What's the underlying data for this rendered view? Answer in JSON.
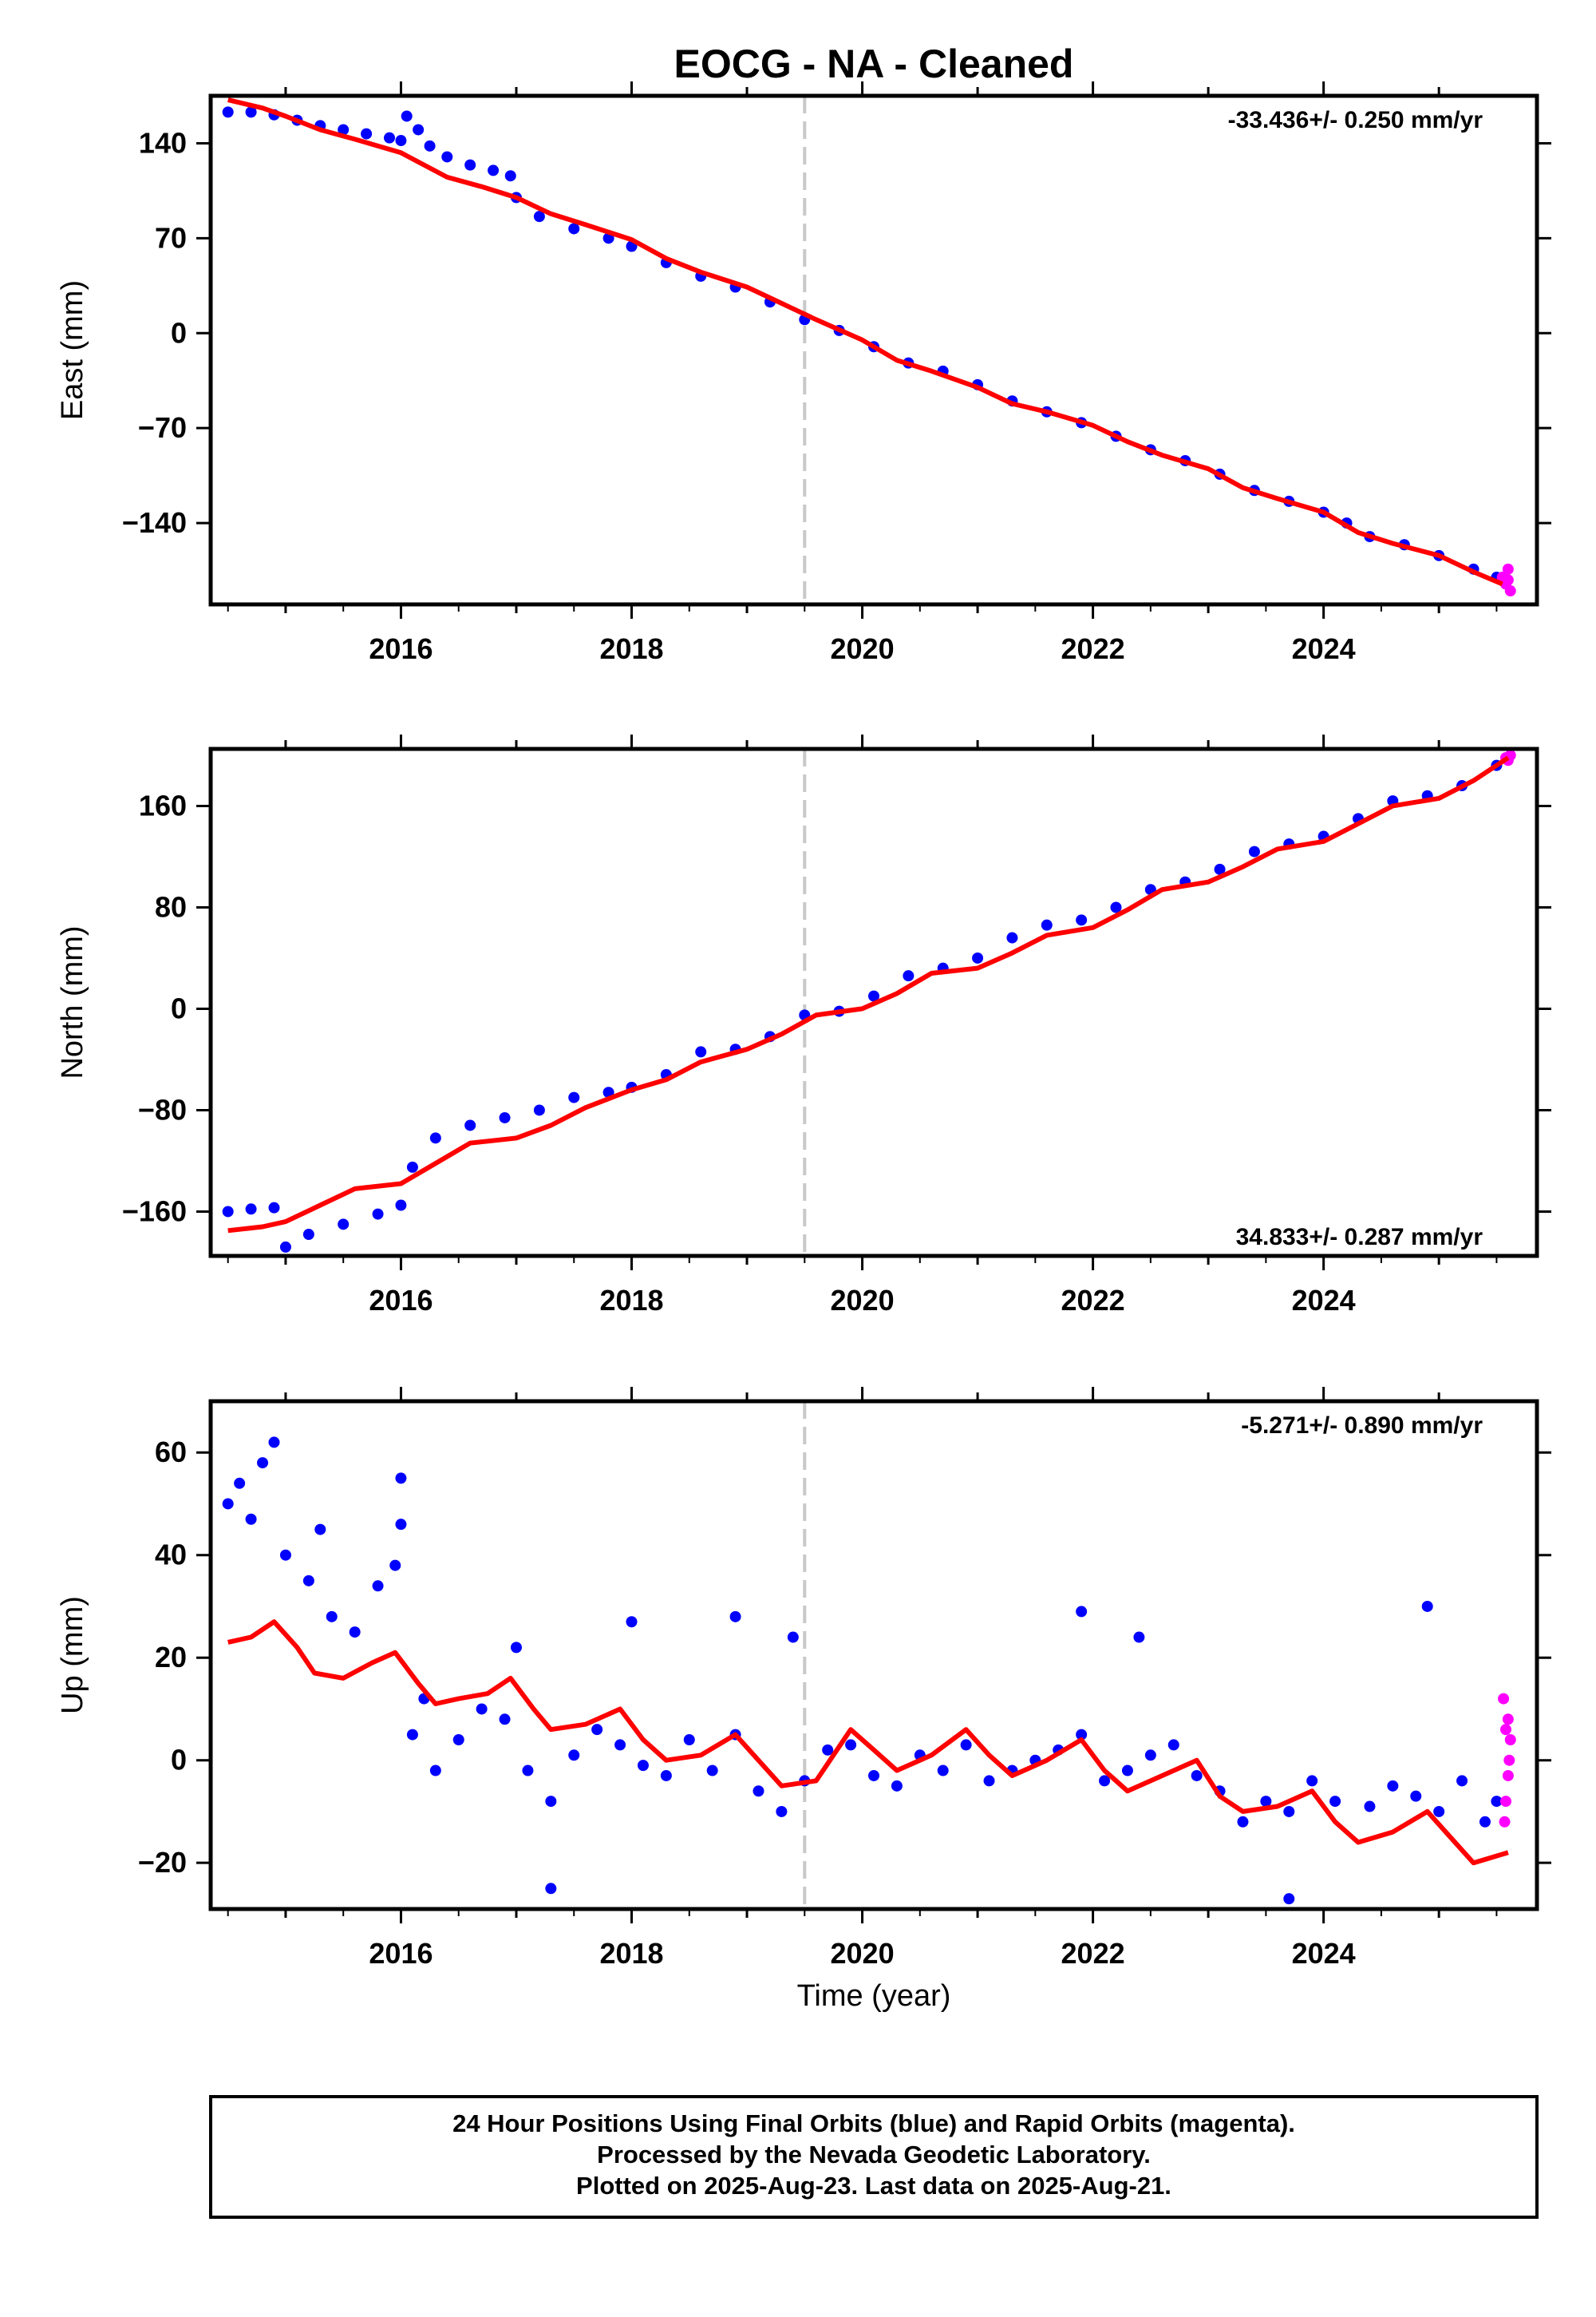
{
  "title": "EOCG  - NA - Cleaned",
  "xlabel": "Time (year)",
  "footer": [
    "24 Hour Positions Using Final Orbits (blue) and Rapid Orbits (magenta).",
    "Processed by the Nevada Geodetic Laboratory.",
    "Plotted on 2025-Aug-23. Last data on 2025-Aug-21."
  ],
  "colors": {
    "final": "#0000ff",
    "rapid": "#ff00ff",
    "model": "#ff0000",
    "marker": "#c8c8c8"
  },
  "chart_data": [
    {
      "type": "scatter",
      "ylabel": "East (mm)",
      "rate": "-33.436+/- 0.250 mm/yr",
      "xlim": [
        2014.35,
        2025.85
      ],
      "ylim": [
        -200,
        175
      ],
      "yticks": [
        140,
        70,
        0,
        -70,
        -140
      ],
      "ytick_labels": [
        "140",
        "70",
        "0",
        "−70",
        "−140"
      ],
      "xticks": [
        2016,
        2018,
        2020,
        2022,
        2024
      ],
      "marker_x": 2019.5,
      "final_points": [
        [
          2014.5,
          163
        ],
        [
          2014.7,
          163
        ],
        [
          2014.9,
          161
        ],
        [
          2015.1,
          157
        ],
        [
          2015.3,
          153
        ],
        [
          2015.5,
          150
        ],
        [
          2015.7,
          147
        ],
        [
          2015.9,
          144
        ],
        [
          2016.0,
          142
        ],
        [
          2016.05,
          160
        ],
        [
          2016.15,
          150
        ],
        [
          2016.25,
          138
        ],
        [
          2016.4,
          130
        ],
        [
          2016.6,
          124
        ],
        [
          2016.8,
          120
        ],
        [
          2016.95,
          116
        ],
        [
          2017.0,
          100
        ],
        [
          2017.2,
          86
        ],
        [
          2017.5,
          77
        ],
        [
          2017.8,
          70
        ],
        [
          2018.0,
          64
        ],
        [
          2018.3,
          52
        ],
        [
          2018.6,
          42
        ],
        [
          2018.9,
          34
        ],
        [
          2019.2,
          23
        ],
        [
          2019.5,
          10
        ],
        [
          2019.8,
          2
        ],
        [
          2020.1,
          -10
        ],
        [
          2020.4,
          -22
        ],
        [
          2020.7,
          -28
        ],
        [
          2021.0,
          -38
        ],
        [
          2021.3,
          -50
        ],
        [
          2021.6,
          -58
        ],
        [
          2021.9,
          -66
        ],
        [
          2022.2,
          -76
        ],
        [
          2022.5,
          -86
        ],
        [
          2022.8,
          -94
        ],
        [
          2023.1,
          -104
        ],
        [
          2023.4,
          -116
        ],
        [
          2023.7,
          -124
        ],
        [
          2024.0,
          -132
        ],
        [
          2024.2,
          -140
        ],
        [
          2024.4,
          -150
        ],
        [
          2024.7,
          -156
        ],
        [
          2025.0,
          -164
        ],
        [
          2025.3,
          -174
        ],
        [
          2025.5,
          -180
        ]
      ],
      "rapid_points": [
        [
          2025.55,
          -180
        ],
        [
          2025.58,
          -185
        ],
        [
          2025.6,
          -174
        ],
        [
          2025.62,
          -190
        ],
        [
          2025.6,
          -182
        ]
      ],
      "model_curve": [
        [
          2014.5,
          172
        ],
        [
          2014.8,
          166
        ],
        [
          2015.0,
          160
        ],
        [
          2015.3,
          150
        ],
        [
          2015.6,
          143
        ],
        [
          2016.0,
          133
        ],
        [
          2016.2,
          124
        ],
        [
          2016.4,
          115
        ],
        [
          2016.7,
          108
        ],
        [
          2017.0,
          100
        ],
        [
          2017.3,
          88
        ],
        [
          2017.6,
          80
        ],
        [
          2018.0,
          69
        ],
        [
          2018.3,
          55
        ],
        [
          2018.6,
          45
        ],
        [
          2019.0,
          34
        ],
        [
          2019.3,
          22
        ],
        [
          2019.6,
          10
        ],
        [
          2020.0,
          -5
        ],
        [
          2020.3,
          -20
        ],
        [
          2020.6,
          -28
        ],
        [
          2021.0,
          -40
        ],
        [
          2021.3,
          -52
        ],
        [
          2021.6,
          -58
        ],
        [
          2022.0,
          -68
        ],
        [
          2022.3,
          -80
        ],
        [
          2022.6,
          -90
        ],
        [
          2023.0,
          -100
        ],
        [
          2023.3,
          -114
        ],
        [
          2023.6,
          -122
        ],
        [
          2024.0,
          -132
        ],
        [
          2024.3,
          -147
        ],
        [
          2024.6,
          -155
        ],
        [
          2025.0,
          -164
        ],
        [
          2025.3,
          -176
        ],
        [
          2025.55,
          -185
        ]
      ]
    },
    {
      "type": "scatter",
      "ylabel": "North (mm)",
      "rate": "34.833+/- 0.287 mm/yr",
      "xlim": [
        2014.35,
        2025.85
      ],
      "ylim": [
        -195,
        205
      ],
      "yticks": [
        160,
        80,
        0,
        -80,
        -160
      ],
      "ytick_labels": [
        "160",
        "80",
        "0",
        "−80",
        "−160"
      ],
      "xticks": [
        2016,
        2018,
        2020,
        2022,
        2024
      ],
      "marker_x": 2019.5,
      "final_points": [
        [
          2014.5,
          -160
        ],
        [
          2014.7,
          -158
        ],
        [
          2014.9,
          -157
        ],
        [
          2015.0,
          -188
        ],
        [
          2015.2,
          -178
        ],
        [
          2015.5,
          -170
        ],
        [
          2015.8,
          -162
        ],
        [
          2016.0,
          -155
        ],
        [
          2016.1,
          -125
        ],
        [
          2016.3,
          -102
        ],
        [
          2016.6,
          -92
        ],
        [
          2016.9,
          -86
        ],
        [
          2017.2,
          -80
        ],
        [
          2017.5,
          -70
        ],
        [
          2017.8,
          -66
        ],
        [
          2018.0,
          -62
        ],
        [
          2018.3,
          -52
        ],
        [
          2018.6,
          -34
        ],
        [
          2018.9,
          -32
        ],
        [
          2019.2,
          -22
        ],
        [
          2019.5,
          -5
        ],
        [
          2019.8,
          -2
        ],
        [
          2020.1,
          10
        ],
        [
          2020.4,
          26
        ],
        [
          2020.7,
          32
        ],
        [
          2021.0,
          40
        ],
        [
          2021.3,
          56
        ],
        [
          2021.6,
          66
        ],
        [
          2021.9,
          70
        ],
        [
          2022.2,
          80
        ],
        [
          2022.5,
          94
        ],
        [
          2022.8,
          100
        ],
        [
          2023.1,
          110
        ],
        [
          2023.4,
          124
        ],
        [
          2023.7,
          130
        ],
        [
          2024.0,
          136
        ],
        [
          2024.3,
          150
        ],
        [
          2024.6,
          164
        ],
        [
          2024.9,
          168
        ],
        [
          2025.2,
          176
        ],
        [
          2025.5,
          192
        ]
      ],
      "rapid_points": [
        [
          2025.58,
          198
        ],
        [
          2025.62,
          200
        ],
        [
          2025.6,
          196
        ]
      ],
      "model_curve": [
        [
          2014.5,
          -175
        ],
        [
          2014.8,
          -172
        ],
        [
          2015.0,
          -168
        ],
        [
          2015.3,
          -155
        ],
        [
          2015.6,
          -142
        ],
        [
          2016.0,
          -138
        ],
        [
          2016.3,
          -122
        ],
        [
          2016.6,
          -106
        ],
        [
          2017.0,
          -102
        ],
        [
          2017.3,
          -92
        ],
        [
          2017.6,
          -78
        ],
        [
          2018.0,
          -64
        ],
        [
          2018.3,
          -56
        ],
        [
          2018.6,
          -42
        ],
        [
          2019.0,
          -32
        ],
        [
          2019.3,
          -20
        ],
        [
          2019.6,
          -5
        ],
        [
          2020.0,
          0
        ],
        [
          2020.3,
          12
        ],
        [
          2020.6,
          28
        ],
        [
          2021.0,
          32
        ],
        [
          2021.3,
          44
        ],
        [
          2021.6,
          58
        ],
        [
          2022.0,
          64
        ],
        [
          2022.3,
          78
        ],
        [
          2022.6,
          94
        ],
        [
          2023.0,
          100
        ],
        [
          2023.3,
          112
        ],
        [
          2023.6,
          126
        ],
        [
          2024.0,
          132
        ],
        [
          2024.3,
          146
        ],
        [
          2024.6,
          160
        ],
        [
          2025.0,
          166
        ],
        [
          2025.3,
          180
        ],
        [
          2025.6,
          198
        ]
      ]
    },
    {
      "type": "scatter",
      "ylabel": "Up (mm)",
      "rate": "-5.271+/- 0.890 mm/yr",
      "xlim": [
        2014.35,
        2025.85
      ],
      "ylim": [
        -29,
        70
      ],
      "yticks": [
        60,
        40,
        20,
        0,
        -20
      ],
      "ytick_labels": [
        "60",
        "40",
        "20",
        "0",
        "−20"
      ],
      "xticks": [
        2016,
        2018,
        2020,
        2022,
        2024
      ],
      "marker_x": 2019.5,
      "final_points": [
        [
          2014.5,
          50
        ],
        [
          2014.6,
          54
        ],
        [
          2014.7,
          47
        ],
        [
          2014.8,
          58
        ],
        [
          2014.9,
          62
        ],
        [
          2015.0,
          40
        ],
        [
          2015.2,
          35
        ],
        [
          2015.4,
          28
        ],
        [
          2015.6,
          25
        ],
        [
          2015.8,
          34
        ],
        [
          2015.95,
          38
        ],
        [
          2016.0,
          55
        ],
        [
          2016.1,
          5
        ],
        [
          2016.3,
          -2
        ],
        [
          2016.5,
          4
        ],
        [
          2016.7,
          10
        ],
        [
          2016.9,
          8
        ],
        [
          2017.1,
          -2
        ],
        [
          2017.3,
          -8
        ],
        [
          2017.5,
          1
        ],
        [
          2017.7,
          6
        ],
        [
          2017.9,
          3
        ],
        [
          2018.1,
          -1
        ],
        [
          2018.3,
          -3
        ],
        [
          2018.5,
          4
        ],
        [
          2018.7,
          -2
        ],
        [
          2018.9,
          5
        ],
        [
          2019.1,
          -6
        ],
        [
          2019.3,
          -10
        ],
        [
          2019.5,
          -4
        ],
        [
          2019.7,
          2
        ],
        [
          2019.9,
          3
        ],
        [
          2020.1,
          -3
        ],
        [
          2020.3,
          -5
        ],
        [
          2020.5,
          1
        ],
        [
          2020.7,
          -2
        ],
        [
          2020.9,
          3
        ],
        [
          2021.1,
          -4
        ],
        [
          2021.3,
          -2
        ],
        [
          2021.5,
          0
        ],
        [
          2021.7,
          2
        ],
        [
          2021.9,
          5
        ],
        [
          2022.1,
          -4
        ],
        [
          2022.3,
          -2
        ],
        [
          2022.5,
          1
        ],
        [
          2022.7,
          3
        ],
        [
          2022.9,
          -3
        ],
        [
          2023.1,
          -6
        ],
        [
          2023.3,
          -12
        ],
        [
          2023.5,
          -8
        ],
        [
          2023.7,
          -10
        ],
        [
          2023.9,
          -4
        ],
        [
          2024.1,
          -8
        ],
        [
          2024.4,
          -9
        ],
        [
          2024.6,
          -5
        ],
        [
          2024.8,
          -7
        ],
        [
          2025.0,
          -10
        ],
        [
          2025.2,
          -4
        ],
        [
          2025.4,
          -12
        ],
        [
          2025.5,
          -8
        ],
        [
          2016.2,
          12
        ],
        [
          2017.0,
          22
        ],
        [
          2018.0,
          27
        ],
        [
          2018.9,
          28
        ],
        [
          2019.4,
          24
        ],
        [
          2021.9,
          29
        ],
        [
          2022.4,
          24
        ],
        [
          2024.9,
          30
        ],
        [
          2017.3,
          -25
        ],
        [
          2023.7,
          -27
        ],
        [
          2015.3,
          45
        ],
        [
          2016.0,
          46
        ]
      ],
      "rapid_points": [
        [
          2025.56,
          12
        ],
        [
          2025.58,
          6
        ],
        [
          2025.6,
          -3
        ],
        [
          2025.62,
          4
        ],
        [
          2025.58,
          -8
        ],
        [
          2025.6,
          8
        ],
        [
          2025.57,
          -12
        ],
        [
          2025.61,
          0
        ]
      ],
      "model_curve": [
        [
          2014.5,
          23
        ],
        [
          2014.7,
          24
        ],
        [
          2014.9,
          27
        ],
        [
          2015.1,
          22
        ],
        [
          2015.25,
          17
        ],
        [
          2015.5,
          16
        ],
        [
          2015.75,
          19
        ],
        [
          2015.95,
          21
        ],
        [
          2016.15,
          15
        ],
        [
          2016.3,
          11
        ],
        [
          2016.5,
          12
        ],
        [
          2016.75,
          13
        ],
        [
          2016.95,
          16
        ],
        [
          2017.15,
          10
        ],
        [
          2017.3,
          6
        ],
        [
          2017.6,
          7
        ],
        [
          2017.9,
          10
        ],
        [
          2018.1,
          4
        ],
        [
          2018.3,
          0
        ],
        [
          2018.6,
          1
        ],
        [
          2018.9,
          5
        ],
        [
          2019.1,
          0
        ],
        [
          2019.3,
          -5
        ],
        [
          2019.6,
          -4
        ],
        [
          2019.9,
          6
        ],
        [
          2020.1,
          2
        ],
        [
          2020.3,
          -2
        ],
        [
          2020.6,
          1
        ],
        [
          2020.9,
          6
        ],
        [
          2021.1,
          1
        ],
        [
          2021.3,
          -3
        ],
        [
          2021.6,
          0
        ],
        [
          2021.9,
          4
        ],
        [
          2022.1,
          -2
        ],
        [
          2022.3,
          -6
        ],
        [
          2022.6,
          -3
        ],
        [
          2022.9,
          0
        ],
        [
          2023.1,
          -7
        ],
        [
          2023.3,
          -10
        ],
        [
          2023.6,
          -9
        ],
        [
          2023.9,
          -6
        ],
        [
          2024.1,
          -12
        ],
        [
          2024.3,
          -16
        ],
        [
          2024.6,
          -14
        ],
        [
          2024.9,
          -10
        ],
        [
          2025.1,
          -15
        ],
        [
          2025.3,
          -20
        ],
        [
          2025.6,
          -18
        ]
      ]
    }
  ]
}
